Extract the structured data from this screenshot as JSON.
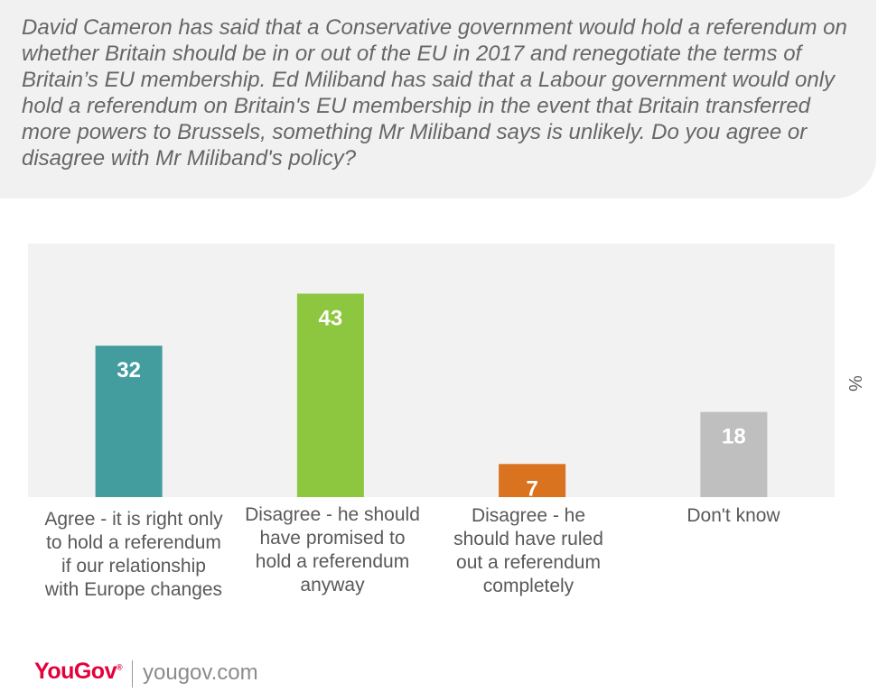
{
  "question": "David Cameron has said that a Conservative government would hold a referendum on whether Britain should be in or out of the EU in 2017 and renegotiate the terms of Britain’s EU membership. Ed Miliband has said that a Labour government would only hold a referendum on Britain's EU membership in the event that Britain transferred more powers to Brussels, something Mr Miliband says is unlikely. Do you agree or disagree with Mr Miliband's policy?",
  "chart_data": {
    "type": "bar",
    "categories": [
      "Agree - it is right only to hold a referendum if our relationship with Europe changes",
      "Disagree - he should have promised to hold a referendum anyway",
      "Disagree - he should have ruled out a referendum completely",
      "Don't know"
    ],
    "values": [
      32,
      43,
      7,
      18
    ],
    "colors": [
      "#439d9f",
      "#8dc63f",
      "#d9731f",
      "#bfbfbf"
    ],
    "ylabel": "%",
    "ylim": [
      0,
      50
    ],
    "grid": false,
    "legend": "none"
  },
  "footer": {
    "brand": "YouGov",
    "brand_mark": "®",
    "site": "yougov.com"
  }
}
